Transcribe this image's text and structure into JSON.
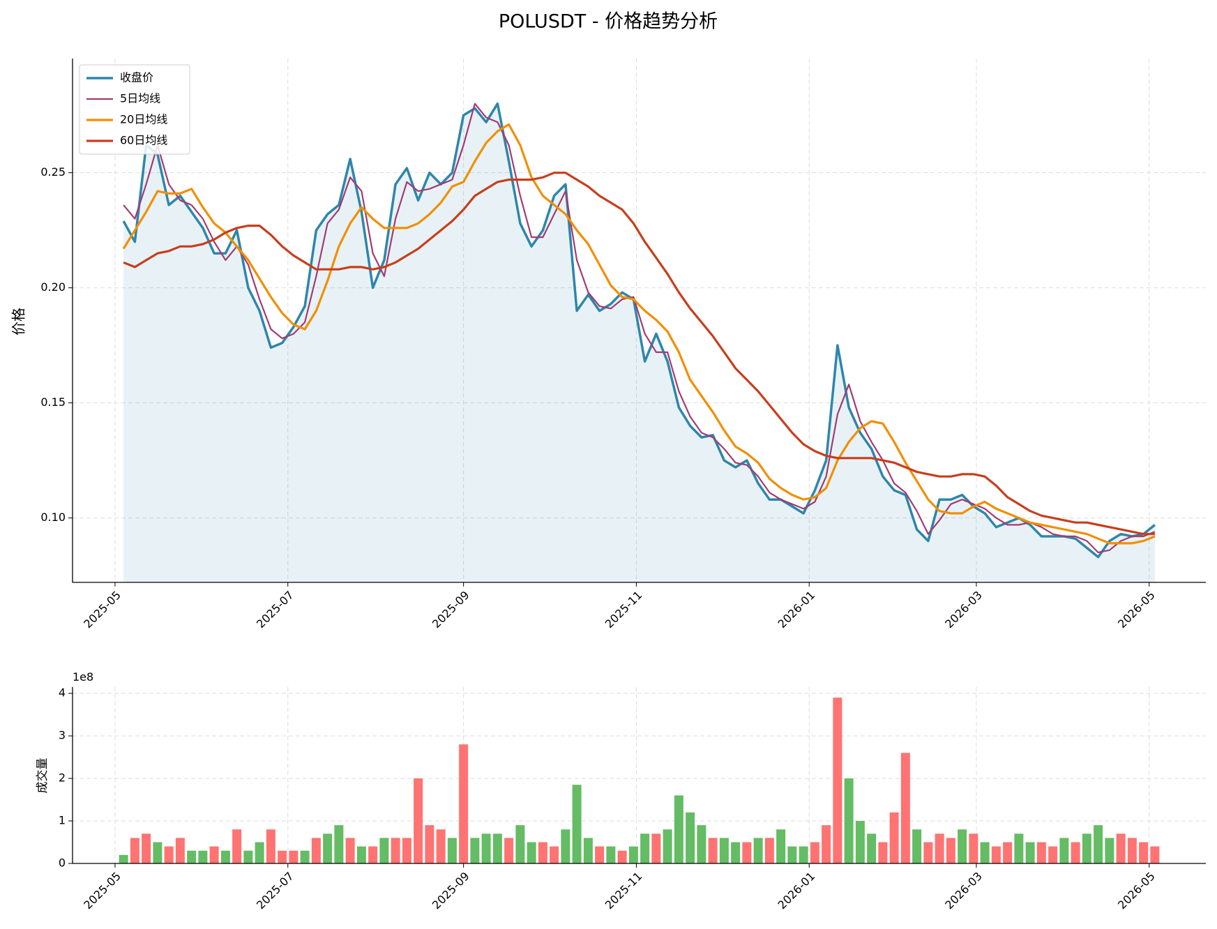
{
  "chart_data": [
    {
      "type": "line",
      "title": "POLUSDT - 价格趋势分析",
      "ylabel": "价格",
      "x": [
        "2025-05-04",
        "2025-05-08",
        "2025-05-12",
        "2025-05-16",
        "2025-05-20",
        "2025-05-24",
        "2025-05-28",
        "2025-06-01",
        "2025-06-05",
        "2025-06-09",
        "2025-06-13",
        "2025-06-17",
        "2025-06-21",
        "2025-06-25",
        "2025-06-29",
        "2025-07-03",
        "2025-07-07",
        "2025-07-11",
        "2025-07-15",
        "2025-07-19",
        "2025-07-23",
        "2025-07-27",
        "2025-07-31",
        "2025-08-04",
        "2025-08-08",
        "2025-08-12",
        "2025-08-16",
        "2025-08-20",
        "2025-08-24",
        "2025-08-28",
        "2025-09-01",
        "2025-09-05",
        "2025-09-09",
        "2025-09-13",
        "2025-09-17",
        "2025-09-21",
        "2025-09-25",
        "2025-09-29",
        "2025-10-03",
        "2025-10-07",
        "2025-10-11",
        "2025-10-15",
        "2025-10-19",
        "2025-10-23",
        "2025-10-27",
        "2025-10-31",
        "2025-11-04",
        "2025-11-08",
        "2025-11-12",
        "2025-11-16",
        "2025-11-20",
        "2025-11-24",
        "2025-11-28",
        "2025-12-02",
        "2025-12-06",
        "2025-12-10",
        "2025-12-14",
        "2025-12-18",
        "2025-12-22",
        "2025-12-26",
        "2025-12-30",
        "2026-01-03",
        "2026-01-07",
        "2026-01-11",
        "2026-01-15",
        "2026-01-19",
        "2026-01-23",
        "2026-01-27",
        "2026-01-31",
        "2026-02-04",
        "2026-02-08",
        "2026-02-12",
        "2026-02-16",
        "2026-02-20",
        "2026-02-24",
        "2026-02-28",
        "2026-03-04",
        "2026-03-08",
        "2026-03-12",
        "2026-03-16",
        "2026-03-20",
        "2026-03-24",
        "2026-03-28",
        "2026-04-01",
        "2026-04-05",
        "2026-04-09",
        "2026-04-13",
        "2026-04-17",
        "2026-04-21",
        "2026-04-25",
        "2026-04-29",
        "2026-05-03"
      ],
      "xlim": [
        "2025-04-16",
        "2026-05-21"
      ],
      "xticks": [
        "2025-05",
        "2025-07",
        "2025-09",
        "2025-11",
        "2026-01",
        "2026-03",
        "2026-05"
      ],
      "ylim": [
        0.072,
        0.2996
      ],
      "yticks": [
        {
          "value": 0.1,
          "label": "0.10"
        },
        0.15,
        {
          "value": 0.2,
          "label": "0.20"
        },
        0.25
      ],
      "grid": true,
      "legend": "upper left",
      "fill_color": "#2e86ab",
      "series": [
        {
          "name": "收盘价",
          "color": "#2e86ab",
          "width": 3.5,
          "fill": true,
          "values": [
            0.229,
            0.22,
            0.262,
            0.258,
            0.236,
            0.24,
            0.233,
            0.226,
            0.215,
            0.215,
            0.225,
            0.2,
            0.19,
            0.174,
            0.176,
            0.183,
            0.192,
            0.225,
            0.232,
            0.236,
            0.256,
            0.233,
            0.2,
            0.212,
            0.245,
            0.252,
            0.238,
            0.25,
            0.245,
            0.25,
            0.275,
            0.278,
            0.272,
            0.28,
            0.255,
            0.228,
            0.218,
            0.225,
            0.24,
            0.245,
            0.19,
            0.197,
            0.19,
            0.193,
            0.198,
            0.195,
            0.168,
            0.18,
            0.168,
            0.148,
            0.14,
            0.135,
            0.136,
            0.125,
            0.122,
            0.125,
            0.115,
            0.108,
            0.108,
            0.105,
            0.102,
            0.112,
            0.125,
            0.175,
            0.148,
            0.137,
            0.13,
            0.118,
            0.112,
            0.11,
            0.095,
            0.09,
            0.108,
            0.108,
            0.11,
            0.105,
            0.102,
            0.096,
            0.098,
            0.1,
            0.097,
            0.092,
            0.092,
            0.092,
            0.091,
            0.087,
            0.083,
            0.09,
            0.093,
            0.092,
            0.093,
            0.097
          ]
        },
        {
          "name": "5日均线",
          "color": "#a23b72",
          "width": 2.2,
          "values": [
            0.236,
            0.23,
            0.245,
            0.262,
            0.245,
            0.238,
            0.236,
            0.23,
            0.22,
            0.212,
            0.218,
            0.21,
            0.195,
            0.182,
            0.178,
            0.18,
            0.185,
            0.205,
            0.228,
            0.234,
            0.248,
            0.242,
            0.215,
            0.205,
            0.23,
            0.246,
            0.242,
            0.243,
            0.245,
            0.247,
            0.262,
            0.28,
            0.274,
            0.272,
            0.262,
            0.24,
            0.222,
            0.222,
            0.232,
            0.242,
            0.212,
            0.198,
            0.192,
            0.191,
            0.195,
            0.196,
            0.18,
            0.172,
            0.172,
            0.155,
            0.144,
            0.137,
            0.135,
            0.13,
            0.124,
            0.123,
            0.118,
            0.111,
            0.108,
            0.106,
            0.104,
            0.107,
            0.118,
            0.145,
            0.158,
            0.142,
            0.133,
            0.125,
            0.115,
            0.111,
            0.103,
            0.093,
            0.099,
            0.106,
            0.108,
            0.106,
            0.104,
            0.1,
            0.097,
            0.097,
            0.098,
            0.096,
            0.093,
            0.092,
            0.092,
            0.09,
            0.085,
            0.086,
            0.09,
            0.092,
            0.092,
            0.094
          ]
        },
        {
          "name": "20日均线",
          "color": "#f18f01",
          "width": 3.2,
          "values": [
            0.217,
            0.225,
            0.233,
            0.242,
            0.241,
            0.241,
            0.243,
            0.235,
            0.228,
            0.224,
            0.218,
            0.212,
            0.204,
            0.196,
            0.189,
            0.184,
            0.182,
            0.19,
            0.203,
            0.218,
            0.228,
            0.235,
            0.23,
            0.226,
            0.226,
            0.226,
            0.228,
            0.232,
            0.237,
            0.244,
            0.246,
            0.255,
            0.263,
            0.268,
            0.271,
            0.262,
            0.248,
            0.24,
            0.236,
            0.232,
            0.225,
            0.219,
            0.21,
            0.201,
            0.196,
            0.195,
            0.19,
            0.186,
            0.181,
            0.172,
            0.16,
            0.153,
            0.146,
            0.138,
            0.131,
            0.128,
            0.124,
            0.117,
            0.113,
            0.11,
            0.108,
            0.109,
            0.113,
            0.125,
            0.133,
            0.139,
            0.142,
            0.141,
            0.133,
            0.124,
            0.116,
            0.108,
            0.103,
            0.102,
            0.102,
            0.105,
            0.107,
            0.104,
            0.102,
            0.1,
            0.098,
            0.097,
            0.096,
            0.095,
            0.094,
            0.093,
            0.091,
            0.089,
            0.089,
            0.089,
            0.09,
            0.092
          ]
        },
        {
          "name": "60日均线",
          "color": "#c73e1d",
          "width": 3.2,
          "values": [
            0.211,
            0.209,
            0.212,
            0.215,
            0.216,
            0.218,
            0.218,
            0.219,
            0.221,
            0.224,
            0.226,
            0.227,
            0.227,
            0.223,
            0.218,
            0.214,
            0.211,
            0.208,
            0.208,
            0.208,
            0.209,
            0.209,
            0.208,
            0.209,
            0.211,
            0.214,
            0.217,
            0.221,
            0.225,
            0.229,
            0.234,
            0.24,
            0.243,
            0.246,
            0.247,
            0.247,
            0.247,
            0.248,
            0.25,
            0.25,
            0.247,
            0.244,
            0.24,
            0.237,
            0.234,
            0.228,
            0.22,
            0.213,
            0.206,
            0.198,
            0.191,
            0.185,
            0.179,
            0.172,
            0.165,
            0.16,
            0.155,
            0.149,
            0.143,
            0.137,
            0.132,
            0.129,
            0.127,
            0.126,
            0.126,
            0.126,
            0.126,
            0.125,
            0.124,
            0.122,
            0.12,
            0.119,
            0.118,
            0.118,
            0.119,
            0.119,
            0.118,
            0.114,
            0.109,
            0.106,
            0.103,
            0.101,
            0.1,
            0.099,
            0.098,
            0.098,
            0.097,
            0.096,
            0.095,
            0.094,
            0.093,
            0.093
          ]
        }
      ]
    },
    {
      "type": "bar",
      "ylabel": "成交量",
      "offset_label": "1e8",
      "x": [
        "2025-05-04",
        "2025-05-08",
        "2025-05-12",
        "2025-05-16",
        "2025-05-20",
        "2025-05-24",
        "2025-05-28",
        "2025-06-01",
        "2025-06-05",
        "2025-06-09",
        "2025-06-13",
        "2025-06-17",
        "2025-06-21",
        "2025-06-25",
        "2025-06-29",
        "2025-07-03",
        "2025-07-07",
        "2025-07-11",
        "2025-07-15",
        "2025-07-19",
        "2025-07-23",
        "2025-07-27",
        "2025-07-31",
        "2025-08-04",
        "2025-08-08",
        "2025-08-12",
        "2025-08-16",
        "2025-08-20",
        "2025-08-24",
        "2025-08-28",
        "2025-09-01",
        "2025-09-05",
        "2025-09-09",
        "2025-09-13",
        "2025-09-17",
        "2025-09-21",
        "2025-09-25",
        "2025-09-29",
        "2025-10-03",
        "2025-10-07",
        "2025-10-11",
        "2025-10-15",
        "2025-10-19",
        "2025-10-23",
        "2025-10-27",
        "2025-10-31",
        "2025-11-04",
        "2025-11-08",
        "2025-11-12",
        "2025-11-16",
        "2025-11-20",
        "2025-11-24",
        "2025-11-28",
        "2025-12-02",
        "2025-12-06",
        "2025-12-10",
        "2025-12-14",
        "2025-12-18",
        "2025-12-22",
        "2025-12-26",
        "2025-12-30",
        "2026-01-03",
        "2026-01-07",
        "2026-01-11",
        "2026-01-15",
        "2026-01-19",
        "2026-01-23",
        "2026-01-27",
        "2026-01-31",
        "2026-02-04",
        "2026-02-08",
        "2026-02-12",
        "2026-02-16",
        "2026-02-20",
        "2026-02-24",
        "2026-02-28",
        "2026-03-04",
        "2026-03-08",
        "2026-03-12",
        "2026-03-16",
        "2026-03-20",
        "2026-03-24",
        "2026-03-28",
        "2026-04-01",
        "2026-04-05",
        "2026-04-09",
        "2026-04-13",
        "2026-04-17",
        "2026-04-21",
        "2026-04-25",
        "2026-04-29",
        "2026-05-03"
      ],
      "xlim": [
        "2025-04-16",
        "2026-05-21"
      ],
      "xticks": [
        "2025-05",
        "2025-07",
        "2025-09",
        "2025-11",
        "2026-01",
        "2026-03",
        "2026-05"
      ],
      "ylim": [
        0,
        4.15
      ],
      "yticks": [
        0,
        1,
        2,
        3,
        4
      ],
      "grid": true,
      "values": [
        0.2,
        0.6,
        0.7,
        0.5,
        0.4,
        0.6,
        0.3,
        0.3,
        0.4,
        0.3,
        0.8,
        0.3,
        0.5,
        0.8,
        0.3,
        0.3,
        0.3,
        0.6,
        0.7,
        0.9,
        0.6,
        0.4,
        0.4,
        0.6,
        0.6,
        0.6,
        2.0,
        0.9,
        0.8,
        0.6,
        2.8,
        0.6,
        0.7,
        0.7,
        0.6,
        0.9,
        0.5,
        0.5,
        0.4,
        0.8,
        1.85,
        0.6,
        0.4,
        0.4,
        0.3,
        0.4,
        0.7,
        0.7,
        0.8,
        1.6,
        1.2,
        0.9,
        0.6,
        0.6,
        0.5,
        0.5,
        0.6,
        0.6,
        0.8,
        0.4,
        0.4,
        0.5,
        0.9,
        3.9,
        2.0,
        1.0,
        0.7,
        0.5,
        1.2,
        2.6,
        0.8,
        0.5,
        0.7,
        0.6,
        0.8,
        0.7,
        0.5,
        0.4,
        0.5,
        0.7,
        0.5,
        0.5,
        0.4,
        0.6,
        0.5,
        0.7,
        0.9,
        0.6,
        0.7,
        0.6,
        0.5,
        0.4
      ],
      "colors": [
        "#5cb85c",
        "#ff6b6b",
        "#ff6b6b",
        "#5cb85c",
        "#ff6b6b",
        "#ff6b6b",
        "#5cb85c",
        "#5cb85c",
        "#ff6b6b",
        "#5cb85c",
        "#ff6b6b",
        "#5cb85c",
        "#5cb85c",
        "#ff6b6b",
        "#ff6b6b",
        "#ff6b6b",
        "#5cb85c",
        "#ff6b6b",
        "#5cb85c",
        "#5cb85c",
        "#ff6b6b",
        "#5cb85c",
        "#ff6b6b",
        "#5cb85c",
        "#ff6b6b",
        "#ff6b6b",
        "#ff6b6b",
        "#ff6b6b",
        "#ff6b6b",
        "#5cb85c",
        "#ff6b6b",
        "#5cb85c",
        "#5cb85c",
        "#5cb85c",
        "#ff6b6b",
        "#5cb85c",
        "#5cb85c",
        "#ff6b6b",
        "#ff6b6b",
        "#5cb85c",
        "#5cb85c",
        "#5cb85c",
        "#ff6b6b",
        "#5cb85c",
        "#ff6b6b",
        "#5cb85c",
        "#5cb85c",
        "#ff6b6b",
        "#5cb85c",
        "#5cb85c",
        "#5cb85c",
        "#5cb85c",
        "#ff6b6b",
        "#5cb85c",
        "#5cb85c",
        "#ff6b6b",
        "#5cb85c",
        "#ff6b6b",
        "#5cb85c",
        "#5cb85c",
        "#5cb85c",
        "#ff6b6b",
        "#ff6b6b",
        "#ff6b6b",
        "#5cb85c",
        "#5cb85c",
        "#5cb85c",
        "#ff6b6b",
        "#ff6b6b",
        "#ff6b6b",
        "#5cb85c",
        "#ff6b6b",
        "#ff6b6b",
        "#ff6b6b",
        "#5cb85c",
        "#ff6b6b",
        "#5cb85c",
        "#ff6b6b",
        "#ff6b6b",
        "#5cb85c",
        "#5cb85c",
        "#ff6b6b",
        "#ff6b6b",
        "#5cb85c",
        "#ff6b6b",
        "#5cb85c",
        "#5cb85c",
        "#5cb85c",
        "#ff6b6b",
        "#ff6b6b",
        "#ff6b6b",
        "#ff6b6b"
      ]
    }
  ]
}
